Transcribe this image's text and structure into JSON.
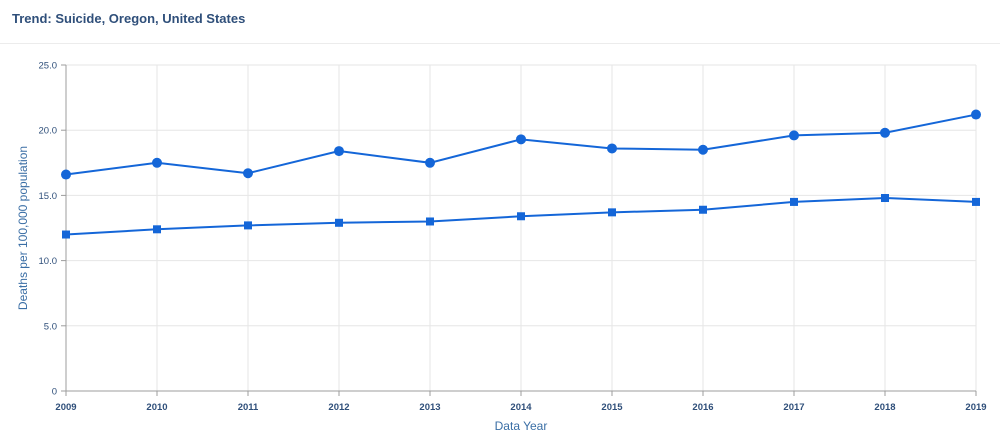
{
  "header": {
    "title": "Trend: Suicide, Oregon, United States"
  },
  "colors": {
    "series": "#1466d8",
    "grid": "#e6e6e6",
    "axis": "#9c9c9c",
    "text": "#2f4f7a"
  },
  "chart_data": {
    "type": "line",
    "title": "Trend: Suicide, Oregon, United States",
    "xlabel": "Data Year",
    "ylabel": "Deaths per 100,000 population",
    "ylim": [
      0,
      25
    ],
    "yticks": [
      "0",
      "5.0",
      "10.0",
      "15.0",
      "20.0",
      "25.0"
    ],
    "ytick_values": [
      0,
      5,
      10,
      15,
      20,
      25
    ],
    "categories": [
      "2009",
      "2010",
      "2011",
      "2012",
      "2013",
      "2014",
      "2015",
      "2016",
      "2017",
      "2018",
      "2019"
    ],
    "grid": true,
    "series": [
      {
        "marker": "circle",
        "values": [
          16.6,
          17.5,
          16.7,
          18.4,
          17.5,
          19.3,
          18.6,
          18.5,
          19.6,
          19.8,
          21.2
        ]
      },
      {
        "marker": "square",
        "values": [
          12.0,
          12.4,
          12.7,
          12.9,
          13.0,
          13.4,
          13.7,
          13.9,
          14.5,
          14.8,
          14.5
        ]
      }
    ]
  }
}
